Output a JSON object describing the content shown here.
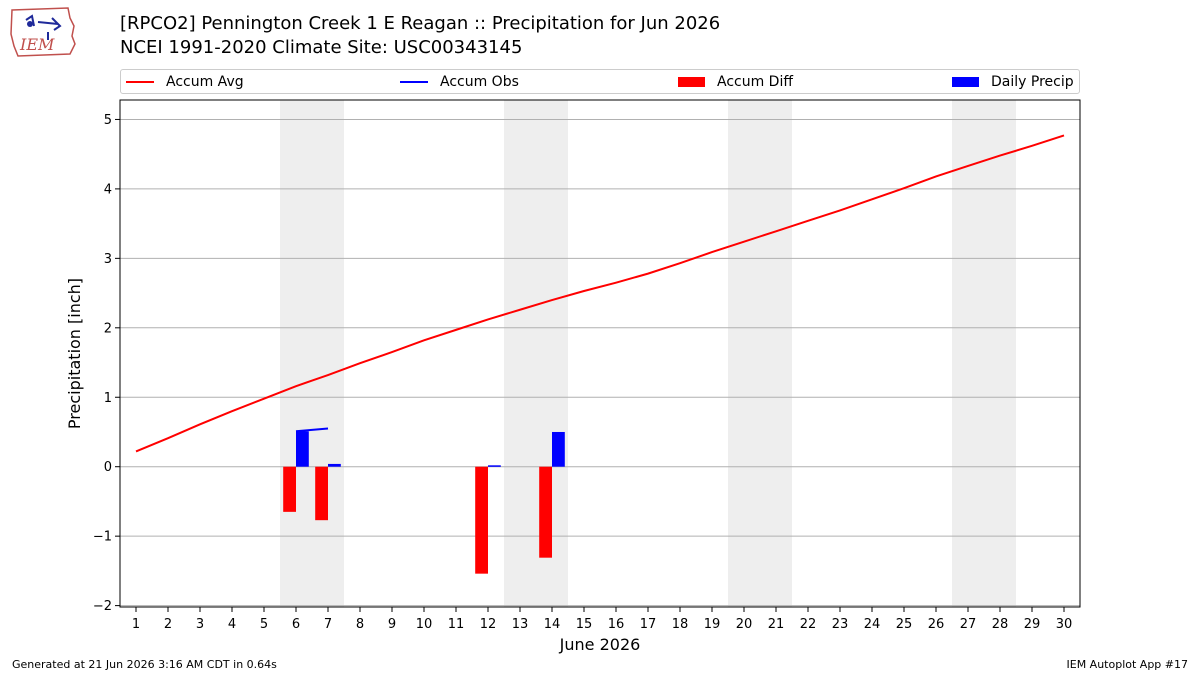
{
  "header": {
    "title_line1": "[RPCO2] Pennington Creek 1 E Reagan :: Precipitation for Jun 2026",
    "title_line2": "NCEI 1991-2020 Climate Site: USC00343145",
    "logo_text": "IEM"
  },
  "legend": {
    "accum_avg": "Accum Avg",
    "accum_obs": "Accum Obs",
    "accum_diff": "Accum Diff",
    "daily_precip": "Daily Precip"
  },
  "footer": {
    "generated": "Generated at 21 Jun 2026 3:16 AM CDT in 0.64s",
    "app": "IEM Autoplot App #17"
  },
  "colors": {
    "accum_avg": "#ff0000",
    "accum_obs": "#0000ff",
    "accum_diff": "#ff0000",
    "daily_precip": "#0000ff",
    "weekend_shade": "#eeeeee",
    "grid": "#b0b0b0"
  },
  "chart_data": {
    "type": "bar",
    "xlabel": "June 2026",
    "ylabel": "Precipitation [inch]",
    "xlim": [
      0.5,
      30.5
    ],
    "ylim": [
      -2.02,
      5.28
    ],
    "x_ticks": [
      1,
      2,
      3,
      4,
      5,
      6,
      7,
      8,
      9,
      10,
      11,
      12,
      13,
      14,
      15,
      16,
      17,
      18,
      19,
      20,
      21,
      22,
      23,
      24,
      25,
      26,
      27,
      28,
      29,
      30
    ],
    "y_ticks": [
      -2,
      -1,
      0,
      1,
      2,
      3,
      4,
      5
    ],
    "y_tick_labels": [
      "−2",
      "−1",
      "0",
      "1",
      "2",
      "3",
      "4",
      "5"
    ],
    "grid": "horizontal",
    "legend_position": "top",
    "weekend_spans": [
      [
        5.5,
        7.5
      ],
      [
        12.5,
        14.5
      ],
      [
        19.5,
        21.5
      ],
      [
        26.5,
        28.5
      ]
    ],
    "series": [
      {
        "name": "Accum Avg",
        "kind": "line",
        "x": [
          1,
          2,
          3,
          4,
          5,
          6,
          7,
          8,
          9,
          10,
          11,
          12,
          13,
          14,
          15,
          16,
          17,
          18,
          19,
          20,
          21,
          22,
          23,
          24,
          25,
          26,
          27,
          28,
          29,
          30
        ],
        "values": [
          0.22,
          0.41,
          0.61,
          0.8,
          0.98,
          1.16,
          1.32,
          1.49,
          1.65,
          1.82,
          1.97,
          2.12,
          2.26,
          2.4,
          2.53,
          2.65,
          2.78,
          2.93,
          3.09,
          3.24,
          3.39,
          3.54,
          3.69,
          3.85,
          4.01,
          4.18,
          4.33,
          4.48,
          4.62,
          4.77
        ]
      },
      {
        "name": "Accum Obs",
        "kind": "line",
        "x": [
          6,
          7
        ],
        "values": [
          0.51,
          0.55
        ]
      },
      {
        "name": "Accum Diff",
        "kind": "bar",
        "x": [
          6,
          7,
          12,
          14
        ],
        "values": [
          -0.65,
          -0.77,
          -1.54,
          -1.31
        ]
      },
      {
        "name": "Daily Precip",
        "kind": "bar",
        "x": [
          6,
          7,
          12,
          14
        ],
        "values": [
          0.51,
          0.04,
          0.02,
          0.5
        ]
      }
    ]
  }
}
